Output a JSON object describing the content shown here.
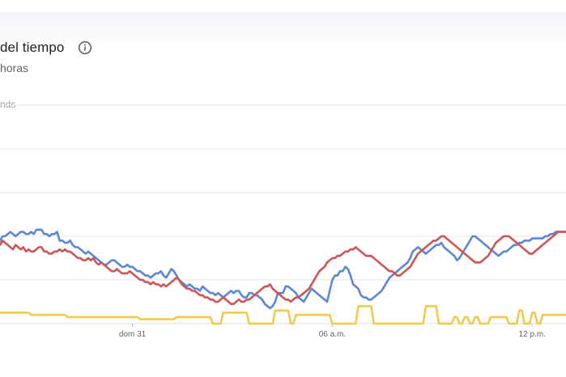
{
  "header": {
    "title": "del tiempo",
    "subtitle": "horas",
    "info_icon": "info-icon"
  },
  "chart_data": {
    "type": "line",
    "title": "del tiempo",
    "subtitle": "horas",
    "ylabel": "",
    "xlabel": "",
    "ylim": [
      0,
      100
    ],
    "y_top_label": "nds",
    "grid": true,
    "x_tick_labels": [
      {
        "label": "dom 31",
        "index": 51
      },
      {
        "label": "06 a.m.",
        "index": 128
      },
      {
        "label": "12 p.m.",
        "index": 205
      }
    ],
    "x": "index 0-215 (hourly samples, unlabeled except ticks)",
    "series": [
      {
        "name": "",
        "color": "#5b87d8",
        "values": [
          38,
          40,
          40,
          41,
          42,
          41,
          40,
          41,
          42,
          42,
          41,
          41,
          42,
          41,
          43,
          43,
          43,
          41,
          41,
          40,
          41,
          41,
          42,
          38,
          38,
          37,
          37,
          38,
          36,
          35,
          35,
          34,
          33,
          32,
          33,
          32,
          31,
          30,
          29,
          28,
          27,
          27,
          28,
          29,
          29,
          28,
          27,
          26,
          26,
          27,
          26,
          26,
          25,
          24,
          24,
          23,
          22,
          22,
          21,
          22,
          23,
          23,
          24,
          22,
          21,
          23,
          25,
          24,
          22,
          20,
          19,
          18,
          17,
          18,
          17,
          16,
          16,
          15,
          17,
          16,
          15,
          14,
          14,
          13,
          14,
          13,
          12,
          13,
          14,
          15,
          14,
          15,
          15,
          13,
          12,
          12,
          14,
          14,
          13,
          13,
          12,
          11,
          9,
          8,
          7,
          8,
          10,
          14,
          14,
          14,
          17,
          17,
          16,
          15,
          14,
          12,
          11,
          10,
          12,
          14,
          16,
          15,
          14,
          13,
          12,
          11,
          10,
          15,
          20,
          22,
          22,
          24,
          24,
          26,
          25,
          22,
          18,
          17,
          16,
          13,
          12,
          12,
          11,
          11,
          12,
          13,
          14,
          15,
          17,
          19,
          21,
          22,
          23,
          24,
          25,
          26,
          27,
          28,
          30,
          33,
          34,
          35,
          34,
          33,
          32,
          33,
          34,
          35,
          36,
          36,
          37,
          35,
          34,
          33,
          32,
          31,
          29,
          30,
          32,
          34,
          36,
          38,
          40,
          40,
          39,
          38,
          37,
          36,
          35,
          34,
          33,
          32,
          31,
          32,
          33,
          33,
          34,
          35,
          36,
          36,
          37,
          37,
          38,
          38,
          38,
          39,
          39,
          39,
          39,
          39,
          40,
          40,
          41,
          41,
          42,
          42,
          42,
          42,
          42
        ]
      },
      {
        "name": "",
        "color": "#cf5555",
        "values": [
          36,
          38,
          37,
          36,
          35,
          34,
          36,
          35,
          34,
          35,
          33,
          34,
          33,
          33,
          34,
          35,
          35,
          33,
          33,
          32,
          32,
          33,
          33,
          34,
          33,
          34,
          33,
          33,
          32,
          31,
          30,
          30,
          29,
          29,
          30,
          29,
          30,
          28,
          27,
          28,
          27,
          26,
          25,
          24,
          24,
          25,
          24,
          23,
          23,
          23,
          24,
          23,
          22,
          21,
          20,
          20,
          19,
          19,
          18,
          19,
          18,
          18,
          17,
          18,
          17,
          18,
          19,
          20,
          21,
          20,
          18,
          17,
          16,
          16,
          15,
          15,
          14,
          13,
          13,
          12,
          12,
          11,
          11,
          10,
          10,
          11,
          12,
          11,
          10,
          9,
          9,
          10,
          11,
          10,
          10,
          11,
          11,
          12,
          13,
          14,
          15,
          16,
          17,
          17,
          18,
          16,
          15,
          14,
          13,
          12,
          11,
          11,
          10,
          11,
          12,
          12,
          13,
          14,
          15,
          16,
          18,
          20,
          22,
          24,
          25,
          26,
          28,
          29,
          30,
          30,
          31,
          31,
          32,
          33,
          33,
          34,
          34,
          35,
          34,
          33,
          32,
          31,
          31,
          31,
          30,
          29,
          28,
          27,
          26,
          25,
          24,
          24,
          23,
          22,
          22,
          23,
          24,
          25,
          26,
          28,
          30,
          32,
          33,
          34,
          35,
          36,
          37,
          38,
          38,
          39,
          40,
          40,
          39,
          38,
          37,
          36,
          35,
          34,
          33,
          32,
          31,
          30,
          29,
          28,
          28,
          28,
          29,
          30,
          31,
          33,
          35,
          37,
          38,
          39,
          40,
          40,
          40,
          39,
          38,
          37,
          36,
          35,
          34,
          33,
          32,
          32,
          33,
          34,
          35,
          36,
          37,
          38,
          39,
          40,
          41,
          42,
          42,
          42,
          42,
          42,
          42,
          42,
          42
        ]
      },
      {
        "name": "",
        "color": "#f2c94c",
        "values": [
          5,
          5,
          5,
          5,
          5,
          5,
          5,
          5,
          5,
          5,
          5,
          5,
          4,
          4,
          4,
          4,
          4,
          4,
          4,
          4,
          4,
          4,
          4,
          4,
          4,
          4,
          3,
          3,
          3,
          3,
          3,
          3,
          3,
          3,
          3,
          3,
          3,
          3,
          3,
          3,
          3,
          3,
          3,
          3,
          3,
          3,
          3,
          3,
          3,
          3,
          3,
          3,
          3,
          3,
          2,
          2,
          2,
          2,
          2,
          2,
          2,
          2,
          2,
          2,
          2,
          2,
          2,
          2,
          3,
          3,
          3,
          3,
          3,
          3,
          3,
          3,
          3,
          3,
          3,
          3,
          3,
          3,
          0,
          0,
          0,
          0,
          5,
          5,
          5,
          5,
          5,
          5,
          5,
          5,
          5,
          5,
          0,
          0,
          0,
          0,
          0,
          0,
          0,
          0,
          0,
          0,
          6,
          6,
          6,
          6,
          6,
          6,
          0,
          0,
          4,
          4,
          4,
          4,
          4,
          4,
          4,
          4,
          4,
          4,
          4,
          4,
          4,
          4,
          0,
          0,
          0,
          0,
          0,
          0,
          0,
          0,
          0,
          0,
          8,
          8,
          8,
          8,
          8,
          8,
          0,
          0,
          0,
          0,
          0,
          0,
          0,
          0,
          0,
          0,
          0,
          0,
          0,
          0,
          0,
          0,
          0,
          0,
          0,
          0,
          8,
          8,
          8,
          8,
          8,
          0,
          0,
          0,
          0,
          0,
          0,
          3,
          3,
          0,
          0,
          3,
          3,
          0,
          0,
          3,
          3,
          0,
          0,
          0,
          0,
          3,
          3,
          3,
          3,
          3,
          3,
          3,
          0,
          0,
          0,
          0,
          6,
          6,
          0,
          0,
          0,
          5,
          5,
          0,
          0,
          4,
          4,
          4,
          4,
          4,
          4,
          4,
          4,
          4,
          4,
          4,
          4,
          4
        ]
      }
    ]
  }
}
